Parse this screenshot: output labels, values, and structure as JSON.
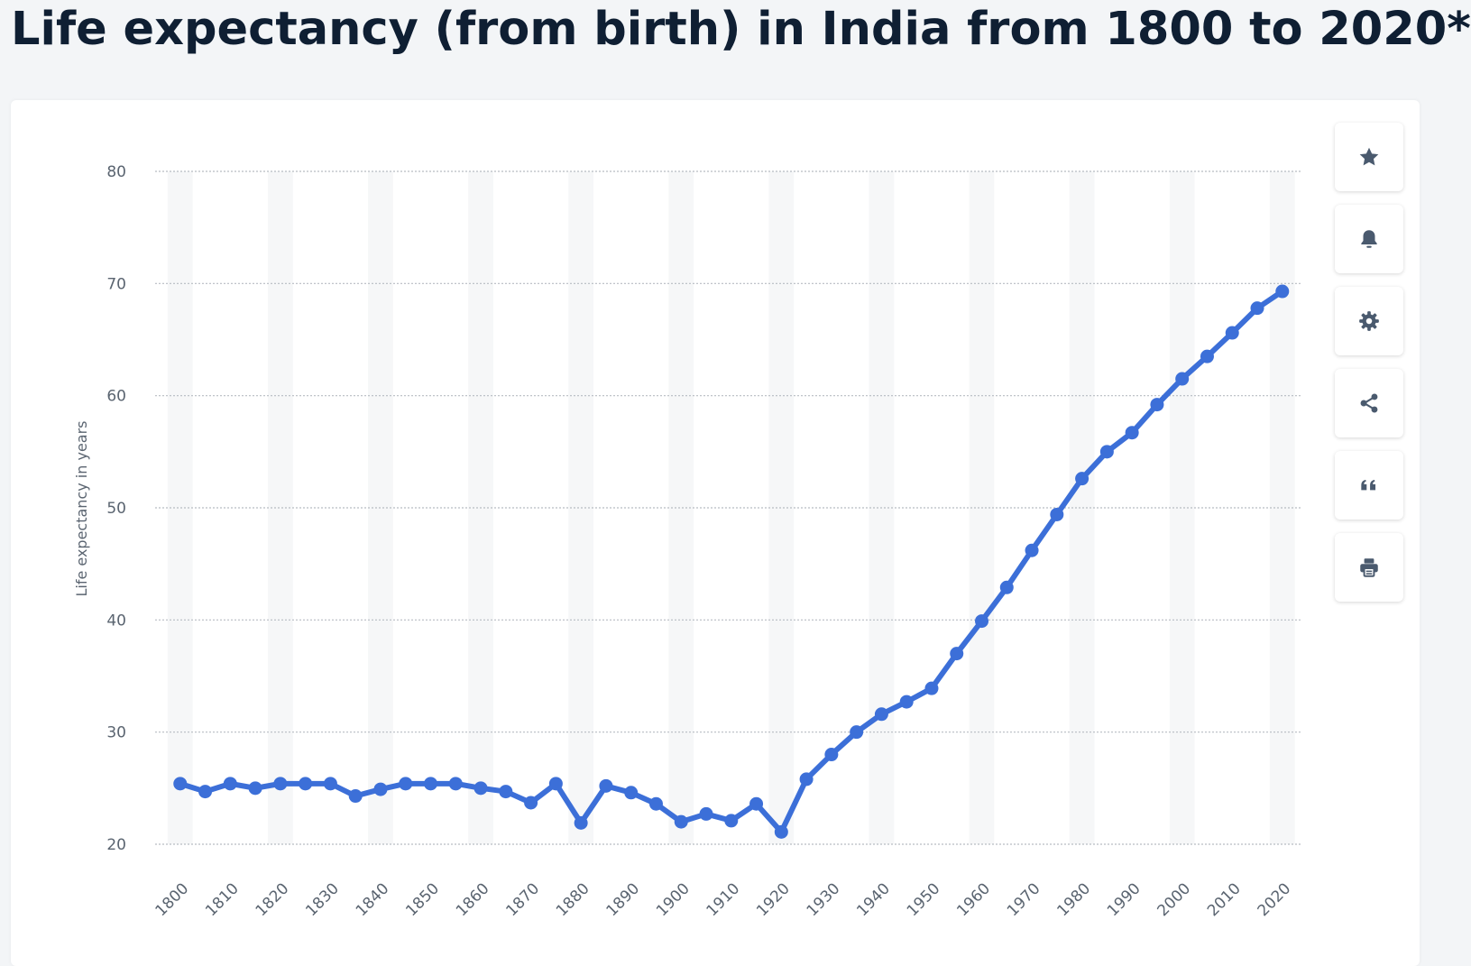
{
  "page": {
    "title": "Life expectancy (from birth) in India from 1800 to 2020*"
  },
  "toolbar": {
    "buttons": [
      {
        "name": "favorite-button",
        "icon": "star-icon"
      },
      {
        "name": "notification-button",
        "icon": "bell-icon"
      },
      {
        "name": "settings-button",
        "icon": "gear-icon"
      },
      {
        "name": "share-button",
        "icon": "share-icon"
      },
      {
        "name": "cite-button",
        "icon": "quote-icon"
      },
      {
        "name": "print-button",
        "icon": "printer-icon"
      }
    ]
  },
  "colors": {
    "line": "#3c6fd8",
    "grid": "#b7bcc2",
    "band": "#f6f7f8",
    "icon": "#4a5a6e"
  },
  "chart_data": {
    "type": "line",
    "title": "Life expectancy (from birth) in India from 1800 to 2020*",
    "xlabel": "",
    "ylabel": "Life expectancy in years",
    "ylim": [
      20,
      80
    ],
    "yticks": [
      "20",
      "30",
      "40",
      "50",
      "60",
      "70",
      "80"
    ],
    "xticks": [
      "1800",
      "1810",
      "1820",
      "1830",
      "1840",
      "1850",
      "1860",
      "1870",
      "1880",
      "1890",
      "1900",
      "1910",
      "1920",
      "1930",
      "1940",
      "1950",
      "1960",
      "1970",
      "1980",
      "1990",
      "2000",
      "2010",
      "2020"
    ],
    "grid": true,
    "series": [
      {
        "name": "Life expectancy in years",
        "x": [
          1800,
          1805,
          1810,
          1815,
          1820,
          1825,
          1830,
          1835,
          1840,
          1845,
          1850,
          1855,
          1860,
          1865,
          1870,
          1875,
          1880,
          1885,
          1890,
          1895,
          1900,
          1905,
          1910,
          1915,
          1920,
          1925,
          1930,
          1935,
          1940,
          1945,
          1950,
          1955,
          1960,
          1965,
          1970,
          1975,
          1980,
          1985,
          1990,
          1995,
          2000,
          2005,
          2010,
          2015,
          2020
        ],
        "values": [
          25.4,
          24.7,
          25.4,
          25.0,
          25.4,
          25.4,
          25.4,
          24.3,
          24.9,
          25.4,
          25.4,
          25.4,
          25.0,
          24.7,
          23.7,
          25.4,
          21.9,
          25.2,
          24.6,
          23.6,
          22.0,
          22.7,
          22.1,
          23.6,
          21.1,
          25.8,
          28.0,
          30.0,
          31.6,
          32.7,
          33.9,
          37.0,
          39.9,
          42.9,
          46.2,
          49.4,
          52.6,
          55.0,
          56.7,
          59.2,
          61.5,
          63.5,
          65.6,
          67.8,
          69.3
        ]
      }
    ]
  }
}
